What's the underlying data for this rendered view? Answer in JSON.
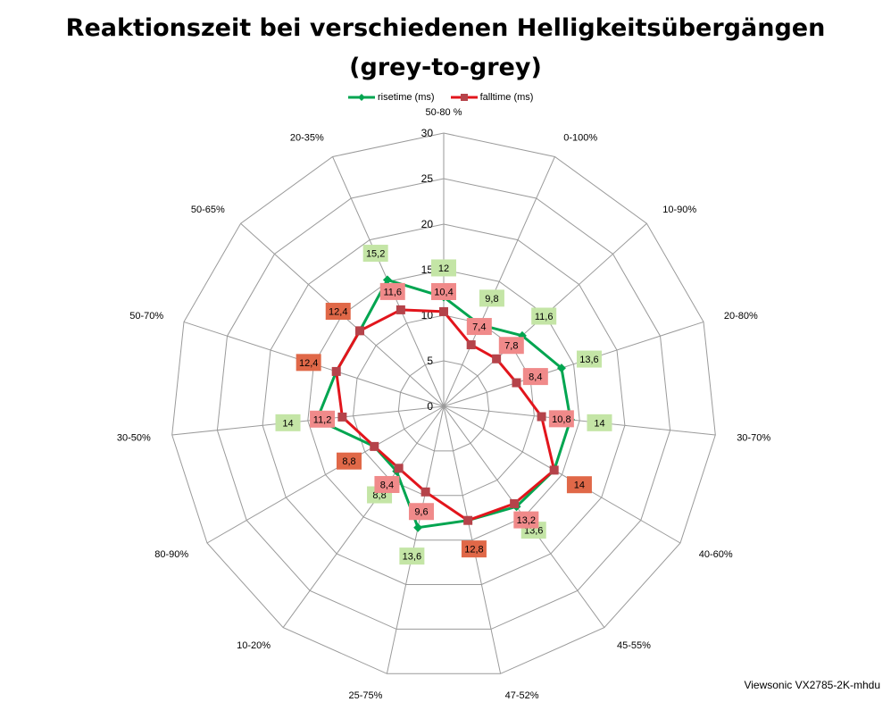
{
  "chart_data": {
    "type": "radar",
    "title_line1": "Reaktionszeit bei verschiedenen Helligkeitsübergängen",
    "title_line2": "(grey-to-grey)",
    "categories": [
      "50-80 %",
      "0-100%",
      "10-90%",
      "20-80%",
      "30-70%",
      "40-60%",
      "45-55%",
      "47-52%",
      "25-75%",
      "10-20%",
      "80-90%",
      "30-50%",
      "50-70%",
      "50-65%",
      "20-35%"
    ],
    "axis_ticks": [
      "0",
      "5",
      "10",
      "15",
      "20",
      "25",
      "30"
    ],
    "rlim": [
      0,
      30
    ],
    "grid": true,
    "legend_position": "top",
    "series": [
      {
        "name": "risetime (ms)",
        "color": "#00a550",
        "marker": "diamond",
        "label_color": "#c4e5a6",
        "values": [
          12,
          9.8,
          11.6,
          13.6,
          14,
          14,
          13.6,
          12.8,
          13.6,
          8.8,
          8.8,
          14,
          12.4,
          12.4,
          15.2
        ],
        "labels": [
          "12",
          "9,8",
          "11,6",
          "13,6",
          "14",
          "14",
          "13,6",
          "12,8",
          "13,6",
          "8,8",
          "8,8",
          "14",
          "12,4",
          "12,4",
          "15,2"
        ]
      },
      {
        "name": "falltime (ms)",
        "color": "#e2151c",
        "marker": "square",
        "label_color": "#f08a8a",
        "values": [
          10.4,
          7.4,
          7.8,
          8.4,
          10.8,
          14,
          13.2,
          12.8,
          9.6,
          8.4,
          8.8,
          11.2,
          12.4,
          12.4,
          11.6
        ],
        "labels": [
          "10,4",
          "7,4",
          "7,8",
          "8,4",
          "10,8",
          "14",
          "13,2",
          "12,8",
          "9,6",
          "8,4",
          "8,8",
          "11,2",
          "12,4",
          "12,4",
          "11,6"
        ]
      }
    ],
    "overlap_label_color": "#e06848",
    "footer": "Viewsonic VX2785-2K-mhdu"
  }
}
